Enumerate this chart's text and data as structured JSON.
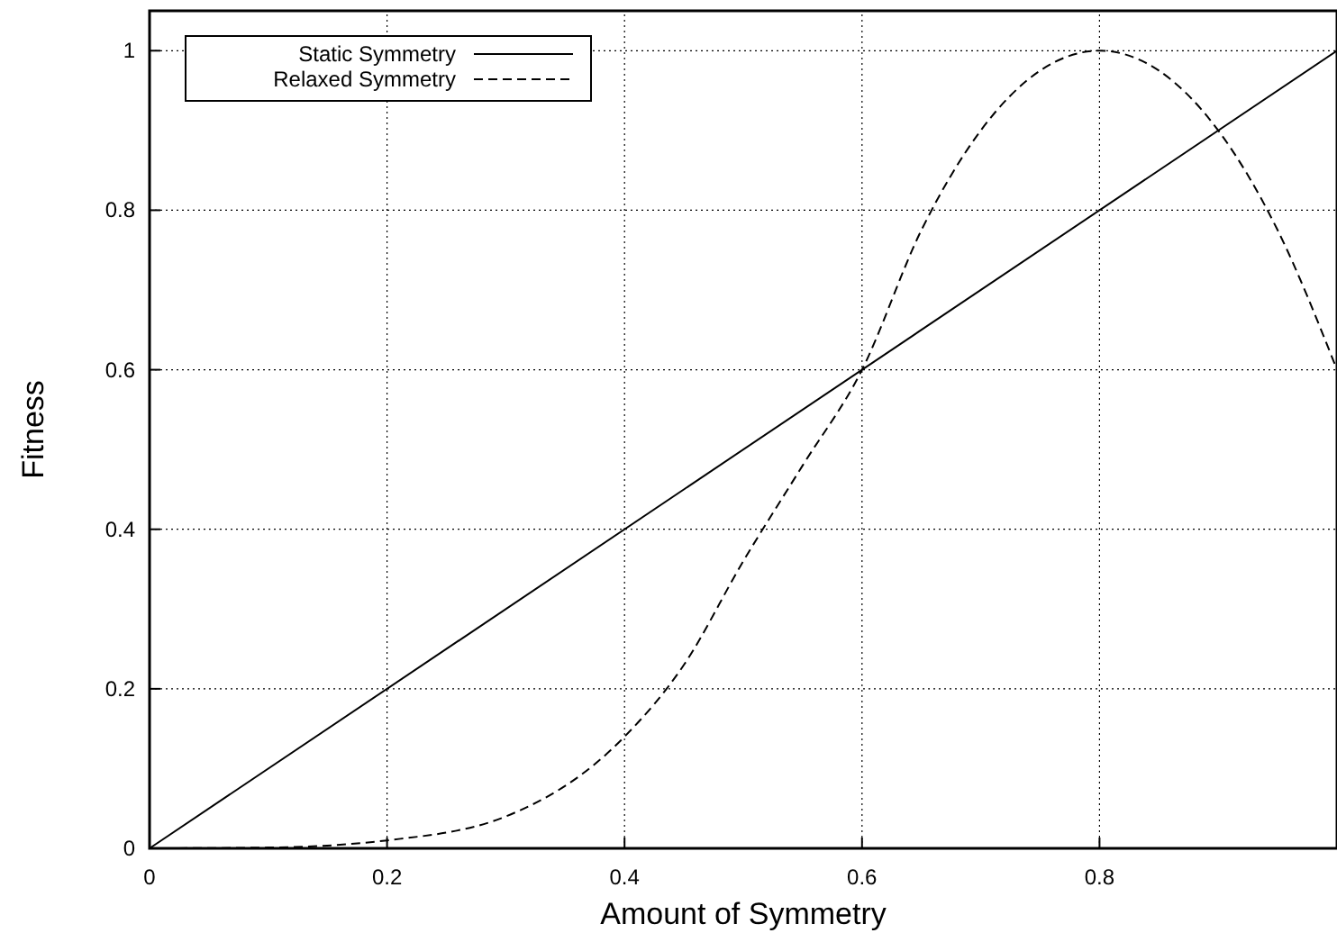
{
  "chart_data": {
    "type": "line",
    "xlabel": "Amount of Symmetry",
    "ylabel": "Fitness",
    "x": [
      0,
      0.1,
      0.2,
      0.3,
      0.4,
      0.45,
      0.5,
      0.55,
      0.6,
      0.65,
      0.7,
      0.75,
      0.8,
      0.85,
      0.9,
      0.95,
      1
    ],
    "series": [
      {
        "name": "Static Symmetry",
        "color": "#000000",
        "line_style": "solid",
        "x": [
          0,
          1
        ],
        "values": [
          0,
          1
        ]
      },
      {
        "name": "Relaxed Symmetry",
        "color": "#000000",
        "line_style": "dashed",
        "values": [
          0,
          0.001,
          0.01,
          0.04,
          0.14,
          0.23,
          0.36,
          0.48,
          0.6,
          0.775,
          0.9,
          0.975,
          1,
          0.975,
          0.9,
          0.775,
          0.6
        ]
      }
    ],
    "xlim": [
      0,
      1
    ],
    "xticks": [
      0,
      0.2,
      0.4,
      0.6,
      0.8,
      {
        "value": 1,
        "label": null
      }
    ],
    "ylim": [
      0,
      1.05
    ],
    "yticks": [
      0,
      0.2,
      0.4,
      0.6,
      0.8,
      1
    ],
    "grid": true,
    "legend": "top left",
    "marker": "none"
  }
}
